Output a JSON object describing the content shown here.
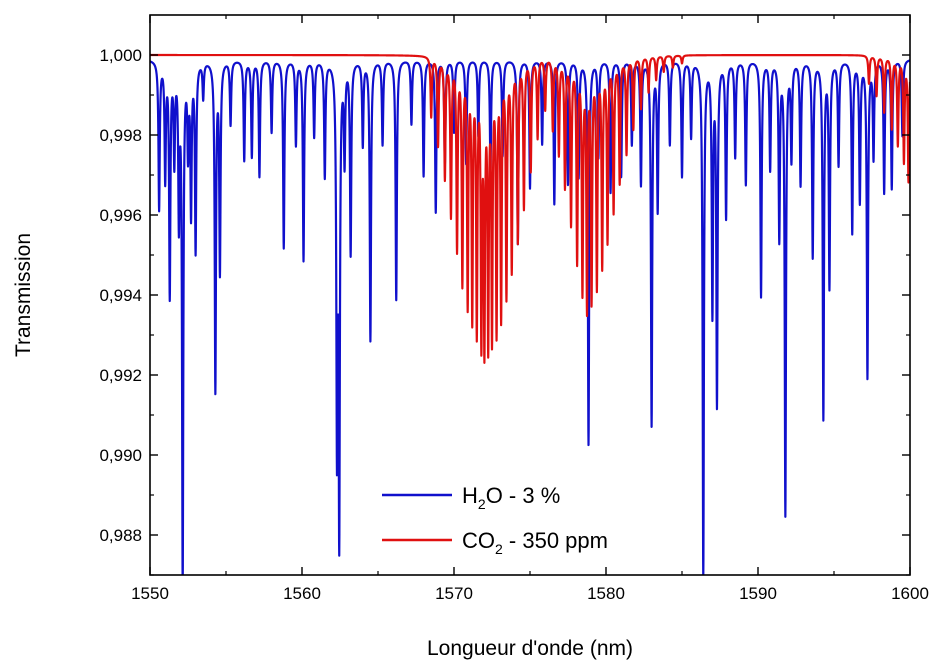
{
  "chart_data": {
    "type": "line",
    "xlabel": "Longueur d'onde (nm)",
    "ylabel": "Transmission",
    "xlim": [
      1550,
      1600
    ],
    "ylim": [
      0.987,
      1.001
    ],
    "x_ticks": [
      "1550",
      "1560",
      "1570",
      "1580",
      "1590",
      "1600"
    ],
    "y_ticks": [
      "0,988",
      "0,990",
      "0,992",
      "0,994",
      "0,996",
      "0,998",
      "1,000"
    ],
    "grid": false,
    "legend_position": "bottom-center",
    "series": [
      {
        "name": "H2O - 3 %",
        "legend_label": {
          "main": "H",
          "sub": "2",
          "rest": "O - 3 %"
        },
        "color": "#1010cc",
        "baseline": 0.9999,
        "absorption_lines": [
          [
            1550.6,
            0.9962
          ],
          [
            1551.0,
            0.997
          ],
          [
            1551.3,
            0.9941
          ],
          [
            1551.6,
            0.9975
          ],
          [
            1551.9,
            0.9961
          ],
          [
            1552.15,
            0.987
          ],
          [
            1552.5,
            0.9978
          ],
          [
            1552.7,
            0.9962
          ],
          [
            1553.0,
            0.9952
          ],
          [
            1553.5,
            0.999
          ],
          [
            1554.3,
            0.9917
          ],
          [
            1554.6,
            0.9947
          ],
          [
            1555.3,
            0.9983
          ],
          [
            1556.2,
            0.9974
          ],
          [
            1556.7,
            0.9975
          ],
          [
            1557.2,
            0.997
          ],
          [
            1558.0,
            0.9981
          ],
          [
            1558.8,
            0.9952
          ],
          [
            1559.6,
            0.9978
          ],
          [
            1560.1,
            0.9949
          ],
          [
            1560.8,
            0.998
          ],
          [
            1561.5,
            0.997
          ],
          [
            1562.3,
            0.9907
          ],
          [
            1562.45,
            0.9885
          ],
          [
            1562.8,
            0.9975
          ],
          [
            1563.2,
            0.9951
          ],
          [
            1564.0,
            0.9978
          ],
          [
            1564.5,
            0.9929
          ],
          [
            1565.3,
            0.9978
          ],
          [
            1566.2,
            0.9939
          ],
          [
            1567.2,
            0.9983
          ],
          [
            1568.0,
            0.997
          ],
          [
            1568.8,
            0.9961
          ],
          [
            1569.4,
            0.9973
          ],
          [
            1570.0,
            0.9981
          ],
          [
            1570.8,
            0.9973
          ],
          [
            1571.6,
            0.998
          ],
          [
            1572.4,
            0.9972
          ],
          [
            1573.2,
            0.9975
          ],
          [
            1574.2,
            0.9953
          ],
          [
            1575.0,
            0.9967
          ],
          [
            1575.8,
            0.9978
          ],
          [
            1576.6,
            0.9963
          ],
          [
            1577.5,
            0.9968
          ],
          [
            1578.2,
            0.997
          ],
          [
            1578.85,
            0.9903
          ],
          [
            1579.5,
            0.9975
          ],
          [
            1580.3,
            0.9966
          ],
          [
            1581.0,
            0.997
          ],
          [
            1581.7,
            0.9978
          ],
          [
            1582.3,
            0.9968
          ],
          [
            1583.0,
            0.9908
          ],
          [
            1583.4,
            0.9962
          ],
          [
            1584.2,
            0.9978
          ],
          [
            1585.0,
            0.997
          ],
          [
            1585.6,
            0.998
          ],
          [
            1586.4,
            0.987
          ],
          [
            1587.0,
            0.9937
          ],
          [
            1587.3,
            0.9914
          ],
          [
            1587.9,
            0.996
          ],
          [
            1588.5,
            0.9975
          ],
          [
            1589.2,
            0.9968
          ],
          [
            1590.2,
            0.994
          ],
          [
            1590.8,
            0.9972
          ],
          [
            1591.4,
            0.9955
          ],
          [
            1591.8,
            0.9886
          ],
          [
            1592.2,
            0.9975
          ],
          [
            1592.8,
            0.9968
          ],
          [
            1593.6,
            0.995
          ],
          [
            1594.3,
            0.991
          ],
          [
            1594.7,
            0.9943
          ],
          [
            1595.3,
            0.9973
          ],
          [
            1596.2,
            0.9956
          ],
          [
            1596.7,
            0.9964
          ],
          [
            1597.2,
            0.992
          ],
          [
            1597.6,
            0.9975
          ],
          [
            1598.3,
            0.9966
          ],
          [
            1598.8,
            0.9967
          ],
          [
            1599.5,
            0.998
          ]
        ]
      },
      {
        "name": "CO2 - 350 ppm",
        "legend_label": {
          "main": "CO",
          "sub": "2",
          "rest": " - 350 ppm"
        },
        "color": "#e01010",
        "baseline": 1.0,
        "absorption_lines": [
          [
            1568.5,
            0.9985
          ],
          [
            1568.95,
            0.9978
          ],
          [
            1569.4,
            0.997
          ],
          [
            1569.8,
            0.9961
          ],
          [
            1570.2,
            0.9953
          ],
          [
            1570.55,
            0.9945
          ],
          [
            1570.9,
            0.994
          ],
          [
            1571.2,
            0.9937
          ],
          [
            1571.5,
            0.9934
          ],
          [
            1571.8,
            0.9933
          ],
          [
            1572.0,
            0.9932
          ],
          [
            1572.25,
            0.9932
          ],
          [
            1572.5,
            0.9933
          ],
          [
            1572.8,
            0.9934
          ],
          [
            1573.1,
            0.9937
          ],
          [
            1573.45,
            0.9942
          ],
          [
            1573.8,
            0.9948
          ],
          [
            1574.2,
            0.9955
          ],
          [
            1574.6,
            0.9963
          ],
          [
            1575.05,
            0.9972
          ],
          [
            1575.5,
            0.998
          ],
          [
            1576.0,
            0.9987
          ],
          [
            1576.5,
            0.9982
          ],
          [
            1576.9,
            0.9976
          ],
          [
            1577.3,
            0.9968
          ],
          [
            1577.7,
            0.9959
          ],
          [
            1578.1,
            0.995
          ],
          [
            1578.45,
            0.9943
          ],
          [
            1578.75,
            0.9939
          ],
          [
            1579.05,
            0.9941
          ],
          [
            1579.4,
            0.9944
          ],
          [
            1579.75,
            0.9949
          ],
          [
            1580.1,
            0.9955
          ],
          [
            1580.5,
            0.9962
          ],
          [
            1580.9,
            0.9969
          ],
          [
            1581.35,
            0.9976
          ],
          [
            1581.8,
            0.9982
          ],
          [
            1582.3,
            0.9987
          ],
          [
            1582.8,
            0.9991
          ],
          [
            1583.3,
            0.9994
          ],
          [
            1583.8,
            0.9996
          ],
          [
            1584.4,
            0.9997
          ],
          [
            1585.0,
            0.9998
          ],
          [
            1597.3,
            0.9993
          ],
          [
            1597.8,
            0.999
          ],
          [
            1598.3,
            0.9986
          ],
          [
            1598.8,
            0.9982
          ],
          [
            1599.2,
            0.9978
          ],
          [
            1599.6,
            0.9974
          ],
          [
            1599.9,
            0.9969
          ]
        ]
      }
    ]
  }
}
